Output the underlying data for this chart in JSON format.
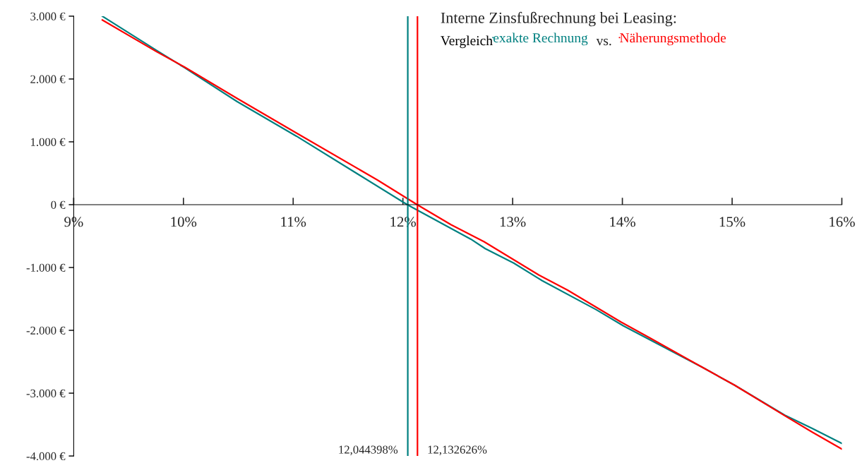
{
  "chart_data": {
    "type": "line",
    "title": "Interne Zinsfußrechnung bei Leasing:",
    "subtitle": "Vergleich",
    "annotations": [
      "vs."
    ],
    "legend": "top right",
    "xlim": [
      9,
      16
    ],
    "xticks": [
      {
        "value": 9,
        "label": "9%"
      },
      {
        "value": 10,
        "label": "10%"
      },
      {
        "value": 11,
        "label": "11%"
      },
      {
        "value": 12,
        "label": "12%"
      },
      {
        "value": 13,
        "label": "13%"
      },
      {
        "value": 14,
        "label": "14%"
      },
      {
        "value": 15,
        "label": "15%"
      },
      {
        "value": 16,
        "label": "16%"
      }
    ],
    "ylim": [
      -4000,
      3000
    ],
    "yticks": [
      {
        "value": -4000,
        "label": "-4.000 €"
      },
      {
        "value": -3000,
        "label": "-3.000 €"
      },
      {
        "value": -2000,
        "label": "-2.000 €"
      },
      {
        "value": -1000,
        "label": "-1.000 €"
      },
      {
        "value": 0,
        "label": "0 €"
      },
      {
        "value": 1000,
        "label": "1.000 €"
      },
      {
        "value": 2000,
        "label": "2.000 €"
      },
      {
        "value": 3000,
        "label": "3.000 €"
      }
    ],
    "grid": false,
    "marker": "none",
    "line_style": "solid",
    "series": [
      {
        "name": "exakte Rechnung",
        "color": "#008080",
        "x": [
          9.26,
          9.76,
          10.01,
          10.49,
          11.03,
          12.04,
          12.62,
          12.75,
          13.01,
          13.27,
          13.76,
          14.01,
          14.73,
          15.02,
          15.48,
          15.73,
          16.0
        ],
        "values": [
          3000,
          2450,
          2180,
          1640,
          1090,
          0,
          -550,
          -700,
          -930,
          -1210,
          -1670,
          -1930,
          -2590,
          -2870,
          -3350,
          -3560,
          -3800
        ]
      },
      {
        "name": "Näherungsmethode",
        "color": "#ff0000",
        "x": [
          9.26,
          9.76,
          10.01,
          10.49,
          11.03,
          11.77,
          12.13,
          12.44,
          12.74,
          13.24,
          13.5,
          13.99,
          14.25,
          14.73,
          15.02,
          15.5,
          15.73,
          16.0
        ],
        "values": [
          2940,
          2430,
          2190,
          1690,
          1140,
          390,
          0,
          -320,
          -590,
          -1120,
          -1360,
          -1870,
          -2120,
          -2590,
          -2870,
          -3380,
          -3620,
          -3890
        ]
      }
    ],
    "ref_lines": [
      {
        "axis": "x",
        "value": 12.044398,
        "label": "12,044398%",
        "color": "#008080"
      },
      {
        "axis": "x",
        "value": 12.132626,
        "label": "12,132626%",
        "color": "#ff0000"
      }
    ]
  }
}
